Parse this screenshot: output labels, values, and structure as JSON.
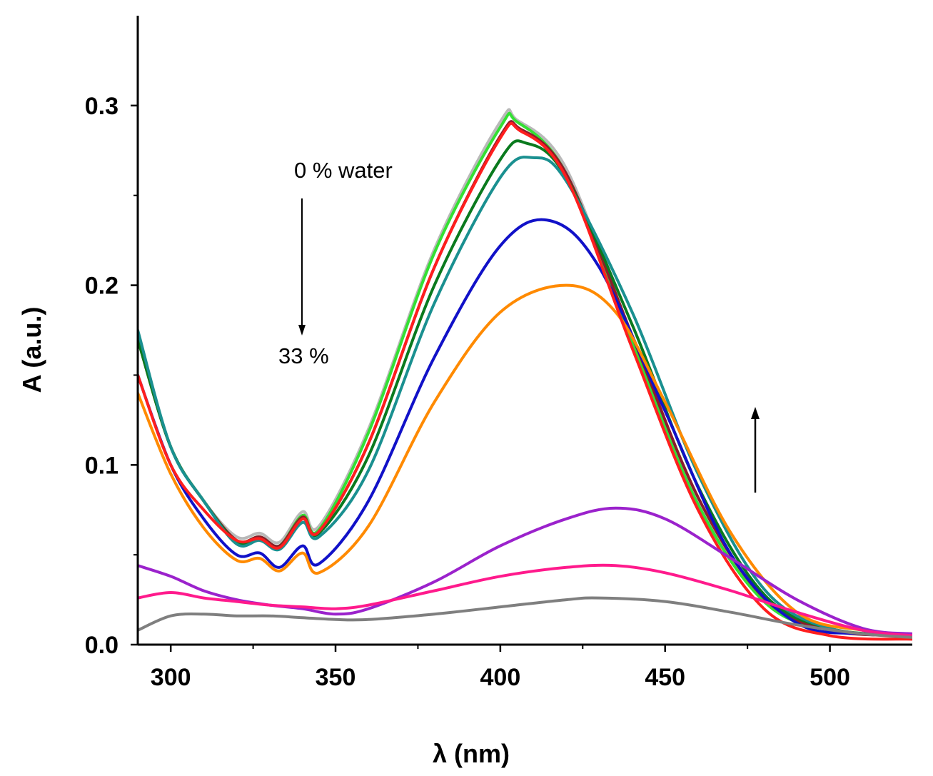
{
  "chart_data": {
    "type": "line",
    "title": "",
    "xlabel": "λ (nm)",
    "ylabel": "A (a.u.)",
    "xlim": [
      290,
      525
    ],
    "ylim": [
      0,
      0.35
    ],
    "xticks": [
      300,
      350,
      400,
      450,
      500
    ],
    "xtick_labels": [
      "300",
      "350",
      "400",
      "450",
      "500"
    ],
    "yticks": [
      0.0,
      0.1,
      0.2,
      0.3
    ],
    "ytick_labels": [
      "0.0",
      "0.1",
      "0.2",
      "0.3"
    ],
    "grid": false,
    "annotations": {
      "top_label": "0 % water",
      "bottom_label": "33 %"
    },
    "series": [
      {
        "name": "curve-grey-light",
        "color": "#b9b9b9",
        "x": [
          290,
          300,
          310,
          320,
          327,
          333,
          340,
          345,
          360,
          380,
          400,
          405,
          420,
          440,
          460,
          480,
          500,
          525
        ],
        "y": [
          0.17,
          0.11,
          0.08,
          0.06,
          0.062,
          0.057,
          0.074,
          0.066,
          0.12,
          0.22,
          0.291,
          0.292,
          0.265,
          0.17,
          0.08,
          0.025,
          0.008,
          0.005
        ]
      },
      {
        "name": "curve-lime",
        "color": "#33e033",
        "x": [
          290,
          300,
          310,
          320,
          327,
          333,
          340,
          345,
          360,
          380,
          400,
          405,
          420,
          440,
          460,
          480,
          500,
          525
        ],
        "y": [
          0.17,
          0.11,
          0.08,
          0.058,
          0.06,
          0.055,
          0.072,
          0.064,
          0.118,
          0.218,
          0.288,
          0.291,
          0.262,
          0.168,
          0.078,
          0.024,
          0.008,
          0.005
        ]
      },
      {
        "name": "curve-maroon",
        "color": "#8b1c2a",
        "x": [
          290,
          300,
          310,
          320,
          327,
          333,
          340,
          345,
          360,
          380,
          400,
          406,
          420,
          440,
          460,
          480,
          500,
          525
        ],
        "y": [
          0.17,
          0.11,
          0.08,
          0.058,
          0.06,
          0.055,
          0.071,
          0.063,
          0.112,
          0.21,
          0.283,
          0.287,
          0.262,
          0.172,
          0.082,
          0.026,
          0.008,
          0.005
        ]
      },
      {
        "name": "curve-green",
        "color": "#0a7a1e",
        "x": [
          290,
          300,
          310,
          320,
          327,
          333,
          340,
          345,
          360,
          380,
          400,
          408,
          420,
          440,
          460,
          480,
          500,
          525
        ],
        "y": [
          0.17,
          0.11,
          0.08,
          0.057,
          0.059,
          0.054,
          0.07,
          0.062,
          0.105,
          0.2,
          0.27,
          0.279,
          0.26,
          0.178,
          0.088,
          0.028,
          0.009,
          0.005
        ]
      },
      {
        "name": "curve-teal",
        "color": "#1a9090",
        "x": [
          290,
          300,
          310,
          320,
          327,
          333,
          340,
          345,
          360,
          380,
          400,
          410,
          420,
          440,
          460,
          480,
          500,
          525
        ],
        "y": [
          0.175,
          0.11,
          0.08,
          0.056,
          0.058,
          0.053,
          0.068,
          0.06,
          0.097,
          0.19,
          0.26,
          0.271,
          0.258,
          0.185,
          0.095,
          0.031,
          0.009,
          0.005
        ]
      },
      {
        "name": "curve-blue",
        "color": "#1111c8",
        "x": [
          290,
          300,
          310,
          320,
          327,
          333,
          340,
          345,
          360,
          380,
          400,
          415,
          430,
          450,
          470,
          490,
          510,
          525
        ],
        "y": [
          0.15,
          0.1,
          0.07,
          0.05,
          0.051,
          0.043,
          0.055,
          0.045,
          0.08,
          0.16,
          0.222,
          0.236,
          0.21,
          0.13,
          0.05,
          0.012,
          0.006,
          0.005
        ]
      },
      {
        "name": "curve-orange",
        "color": "#ff8a00",
        "x": [
          290,
          300,
          310,
          320,
          327,
          333,
          340,
          345,
          360,
          380,
          400,
          420,
          435,
          450,
          470,
          490,
          510,
          525
        ],
        "y": [
          0.14,
          0.095,
          0.065,
          0.047,
          0.048,
          0.041,
          0.051,
          0.04,
          0.066,
          0.135,
          0.185,
          0.2,
          0.185,
          0.135,
          0.062,
          0.018,
          0.008,
          0.006
        ]
      },
      {
        "name": "curve-red",
        "color": "#ff1e1e",
        "x": [
          290,
          300,
          310,
          320,
          327,
          333,
          340,
          345,
          360,
          380,
          400,
          406,
          420,
          440,
          460,
          480,
          500,
          525
        ],
        "y": [
          0.15,
          0.1,
          0.075,
          0.058,
          0.059,
          0.054,
          0.07,
          0.063,
          0.112,
          0.21,
          0.282,
          0.286,
          0.26,
          0.165,
          0.075,
          0.02,
          0.005,
          0.003
        ]
      },
      {
        "name": "curve-violet",
        "color": "#9b22cc",
        "x": [
          290,
          300,
          310,
          320,
          330,
          340,
          350,
          360,
          380,
          400,
          420,
          435,
          450,
          470,
          490,
          510,
          525
        ],
        "y": [
          0.044,
          0.038,
          0.03,
          0.025,
          0.022,
          0.02,
          0.017,
          0.02,
          0.035,
          0.055,
          0.07,
          0.076,
          0.07,
          0.048,
          0.025,
          0.009,
          0.006
        ]
      },
      {
        "name": "curve-pink",
        "color": "#ff1a8c",
        "x": [
          290,
          300,
          310,
          320,
          330,
          340,
          350,
          360,
          380,
          400,
          420,
          435,
          450,
          470,
          490,
          510,
          525
        ],
        "y": [
          0.026,
          0.029,
          0.026,
          0.024,
          0.022,
          0.021,
          0.02,
          0.022,
          0.03,
          0.038,
          0.043,
          0.044,
          0.04,
          0.03,
          0.018,
          0.008,
          0.005
        ]
      },
      {
        "name": "curve-grey-dark",
        "color": "#7f7f7f",
        "x": [
          290,
          300,
          310,
          320,
          330,
          340,
          350,
          360,
          380,
          400,
          420,
          430,
          450,
          470,
          490,
          510,
          525
        ],
        "y": [
          0.008,
          0.016,
          0.017,
          0.016,
          0.016,
          0.015,
          0.014,
          0.014,
          0.017,
          0.021,
          0.025,
          0.026,
          0.024,
          0.018,
          0.011,
          0.006,
          0.004
        ]
      }
    ]
  }
}
